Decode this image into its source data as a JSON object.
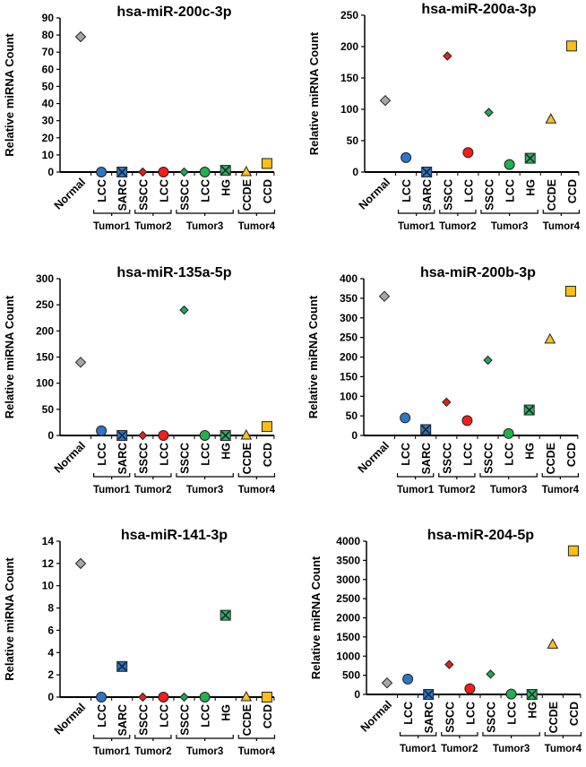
{
  "chart_data": [
    {
      "type": "scatter",
      "title": "hsa-miR-200c-3p",
      "ylabel": "Relative miRNA Count",
      "ylim": [
        0,
        90
      ],
      "ticks": [
        0,
        10,
        20,
        30,
        40,
        50,
        60,
        70,
        80,
        90
      ],
      "values": [
        79,
        0,
        0,
        0,
        0,
        0,
        0,
        1,
        0,
        5
      ]
    },
    {
      "type": "scatter",
      "title": "hsa-miR-200a-3p",
      "ylabel": "Relative miRNA Count",
      "ylim": [
        0,
        250
      ],
      "ticks": [
        0,
        50,
        100,
        150,
        200,
        250
      ],
      "values": [
        114,
        23,
        0,
        185,
        31,
        95,
        12,
        22,
        84,
        201
      ]
    },
    {
      "type": "scatter",
      "title": "hsa-miR-135a-5p",
      "ylabel": "Relative miRNA Count",
      "ylim": [
        0,
        300
      ],
      "ticks": [
        0,
        50,
        100,
        150,
        200,
        250,
        300
      ],
      "values": [
        140,
        9,
        0,
        0,
        0,
        240,
        0,
        0,
        0,
        17
      ]
    },
    {
      "type": "scatter",
      "title": "hsa-miR-200b-3p",
      "ylabel": "Relative miRNA Count",
      "ylim": [
        0,
        400
      ],
      "ticks": [
        0,
        50,
        100,
        150,
        200,
        250,
        300,
        350,
        400
      ],
      "values": [
        355,
        45,
        15,
        85,
        38,
        192,
        5,
        65,
        245,
        368
      ]
    },
    {
      "type": "scatter",
      "title": "hsa-miR-141-3p",
      "ylabel": "Relative miRNA Count",
      "ylim": [
        0,
        14
      ],
      "ticks": [
        0,
        2,
        4,
        6,
        8,
        10,
        12,
        14
      ],
      "values": [
        12,
        0,
        2.75,
        0,
        0,
        0,
        0,
        7.35,
        0,
        0
      ]
    },
    {
      "type": "scatter",
      "title": "hsa-miR-204-5p",
      "ylabel": "Relative miRNA Count",
      "ylim": [
        0,
        4000
      ],
      "ticks": [
        0,
        500,
        1000,
        1500,
        2000,
        2500,
        3000,
        3500,
        4000
      ],
      "values": [
        300,
        400,
        0,
        780,
        150,
        530,
        10,
        0,
        1300,
        3750
      ]
    }
  ],
  "categories": [
    "Normal",
    "LCC",
    "SARC",
    "SSCC",
    "LCC",
    "SSCC",
    "LCC",
    "HG",
    "CCDE",
    "CCD"
  ],
  "groups": [
    {
      "label": "Tumor1",
      "from": 1,
      "to": 2
    },
    {
      "label": "Tumor2",
      "from": 3,
      "to": 4
    },
    {
      "label": "Tumor3",
      "from": 5,
      "to": 7
    },
    {
      "label": "Tumor4",
      "from": 8,
      "to": 9
    }
  ],
  "markers": [
    {
      "shape": "diamond",
      "color": "#a6a6a6"
    },
    {
      "shape": "circle",
      "color": "#2e75c4"
    },
    {
      "shape": "square-x",
      "color": "#2e75c4"
    },
    {
      "shape": "small-diamond",
      "color": "#e0211f"
    },
    {
      "shape": "circle",
      "color": "#ff1a1a"
    },
    {
      "shape": "small-diamond",
      "color": "#22a652"
    },
    {
      "shape": "circle",
      "color": "#22b050"
    },
    {
      "shape": "square-x",
      "color": "#2fb35a"
    },
    {
      "shape": "triangle",
      "color": "#f5c12a"
    },
    {
      "shape": "square",
      "color": "#fbbf16"
    }
  ]
}
